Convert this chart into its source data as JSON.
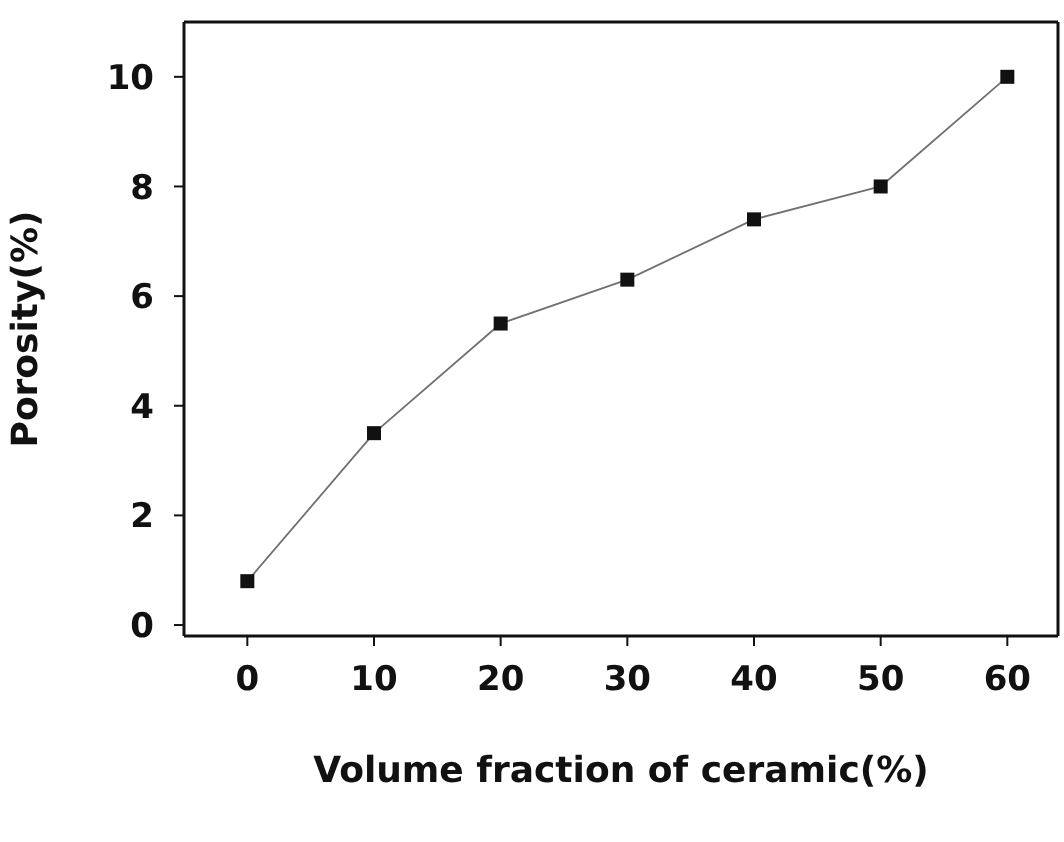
{
  "chart_data": {
    "type": "line",
    "xlabel": "Volume fraction of ceramic(%)",
    "ylabel": "Porosity(%)",
    "x": [
      0,
      10,
      20,
      30,
      40,
      50,
      60
    ],
    "series": [
      {
        "color": "#111111",
        "values": [
          0.8,
          3.5,
          5.5,
          6.3,
          7.4,
          8.0,
          10.0
        ]
      }
    ],
    "xlim": [
      -5,
      64
    ],
    "xticks": [
      0,
      10,
      20,
      30,
      40,
      50,
      60
    ],
    "ylim": [
      -0.2,
      11
    ],
    "yticks": [
      0,
      2,
      4,
      6,
      8,
      10
    ],
    "marker": "square",
    "line_style": "solid",
    "grid": false,
    "legend": false
  }
}
